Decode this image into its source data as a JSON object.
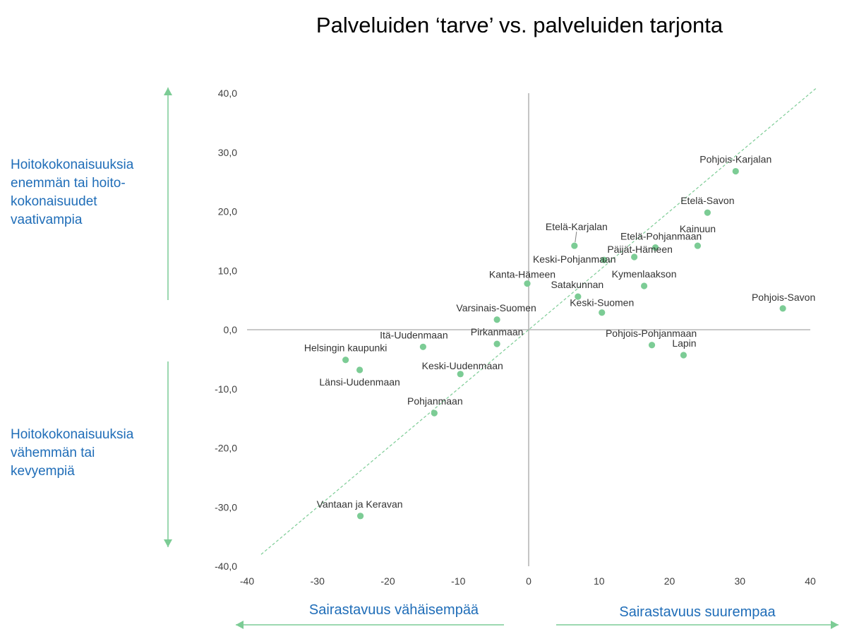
{
  "colors": {
    "point": "#7ccc95",
    "arrow": "#7ccc95",
    "annotation": "#1f6db8",
    "axis": "#a6a6a6",
    "trend": "#7ccc95"
  },
  "annotations": {
    "top_left": [
      "Hoitokokonaisuuksia",
      "enemmän tai hoito-",
      "kokonaisuudet",
      "vaativampia"
    ],
    "bottom_left": [
      "Hoitokokonaisuuksia",
      "vähemmän tai",
      "kevyempiä"
    ],
    "bottom_x_left": "Sairastavuus vähäisempää",
    "bottom_x_right": "Sairastavuus suurempaa"
  },
  "chart_data": {
    "type": "scatter",
    "title": "Palveluiden ‘tarve’  vs. palveluiden tarjonta",
    "xlabel": "",
    "ylabel": "",
    "xlim": [
      -40,
      40
    ],
    "ylim": [
      -40,
      40
    ],
    "x_ticks": [
      "-40",
      "-30",
      "-20",
      "-10",
      "0",
      "10",
      "20",
      "30",
      "40"
    ],
    "y_ticks": [
      "40,0",
      "30,0",
      "20,0",
      "10,0",
      "0,0",
      "-10,0",
      "-20,0",
      "-30,0",
      "-40,0"
    ],
    "trendline": {
      "from": [
        -38,
        -38
      ],
      "to": [
        41,
        41
      ],
      "style": "dashed"
    },
    "points": [
      {
        "name": "Pohjois-Karjalan",
        "x": 29.4,
        "y": 26.8
      },
      {
        "name": "Etelä-Savon",
        "x": 25.4,
        "y": 19.8
      },
      {
        "name": "Kainuun",
        "x": 24.0,
        "y": 14.2
      },
      {
        "name": "Etelä-Pohjanmaan",
        "x": 18.0,
        "y": 13.9
      },
      {
        "name": "Päijät-Hämeen",
        "x": 15.0,
        "y": 12.3
      },
      {
        "name": "Etelä-Karjalan",
        "x": 6.5,
        "y": 14.2
      },
      {
        "name": "Keski-Pohjanmaan",
        "x": 10.7,
        "y": 11.8
      },
      {
        "name": "Kymenlaakson",
        "x": 16.4,
        "y": 7.4
      },
      {
        "name": "Kanta-Hämeen",
        "x": -0.2,
        "y": 7.8
      },
      {
        "name": "Satakunnan",
        "x": 7.0,
        "y": 5.6
      },
      {
        "name": "Keski-Suomen",
        "x": 10.4,
        "y": 2.9
      },
      {
        "name": "Pohjois-Savon",
        "x": 36.1,
        "y": 3.6
      },
      {
        "name": "Varsinais-Suomen",
        "x": -4.5,
        "y": 1.7
      },
      {
        "name": "Pirkanmaan",
        "x": -4.5,
        "y": -2.4
      },
      {
        "name": "Itä-Uudenmaan",
        "x": -15.0,
        "y": -2.9
      },
      {
        "name": "Helsingin kaupunki",
        "x": -26.0,
        "y": -5.1
      },
      {
        "name": "Länsi-Uudenmaan",
        "x": -24.0,
        "y": -6.8
      },
      {
        "name": "Keski-Uudenmaan",
        "x": -9.7,
        "y": -7.5
      },
      {
        "name": "Pohjois-Pohjanmaan",
        "x": 17.5,
        "y": -2.6
      },
      {
        "name": "Lapin",
        "x": 22.0,
        "y": -4.3
      },
      {
        "name": "Pohjanmaan",
        "x": -13.4,
        "y": -14.1
      },
      {
        "name": "Vantaan ja Keravan",
        "x": -23.9,
        "y": -31.5
      }
    ]
  }
}
